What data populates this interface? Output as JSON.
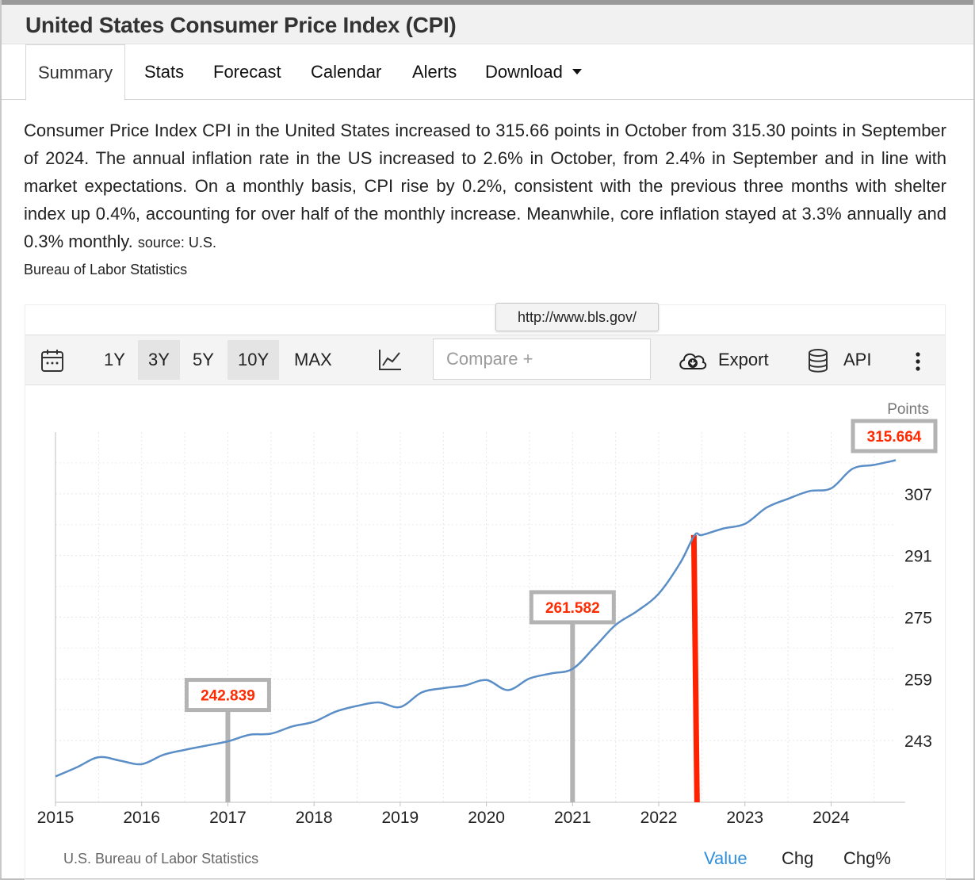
{
  "page": {
    "title": "United States Consumer Price Index (CPI)"
  },
  "tabs": [
    {
      "label": "Summary"
    },
    {
      "label": "Stats"
    },
    {
      "label": "Forecast"
    },
    {
      "label": "Calendar"
    },
    {
      "label": "Alerts"
    },
    {
      "label": "Download"
    }
  ],
  "summary": {
    "text": "Consumer Price Index CPI in the United States increased to 315.66 points in October from 315.30 points in September of 2024. The annual inflation rate in the US increased to 2.6% in October, from 2.4% in September and in line with market expectations. On a monthly basis, CPI rise by 0.2%, consistent with the previous three months with shelter index up 0.4%, accounting for over half of the monthly increase. Meanwhile, core inflation stayed at 3.3% annually and 0.3% monthly.",
    "source_label": "source: U.S.",
    "source_name": "Bureau of Labor Statistics"
  },
  "tooltip": {
    "text": "http://www.bls.gov/"
  },
  "toolbar": {
    "calendar_icon": "calendar-icon",
    "periods": [
      "1Y",
      "3Y",
      "5Y",
      "10Y",
      "MAX"
    ],
    "selected_periods": [
      "3Y",
      "10Y"
    ],
    "chart_type_icon": "line-chart-icon",
    "compare_placeholder": "Compare +",
    "export_icon": "cloud-download-icon",
    "export_label": "Export",
    "api_icon": "database-icon",
    "api_label": "API",
    "more_icon": "vertical-dots-icon"
  },
  "footer": {
    "source": "U.S. Bureau of Labor Statistics",
    "modes": [
      "Value",
      "Chg",
      "Chg%"
    ],
    "active_mode": "Value",
    "active_color": "#2f8fdd"
  },
  "chart_data": {
    "type": "line",
    "unit_label": "Points",
    "x_ticks": [
      "2015",
      "2016",
      "2017",
      "2018",
      "2019",
      "2020",
      "2021",
      "2022",
      "2023",
      "2024"
    ],
    "y_ticks": [
      243,
      259,
      275,
      291,
      307
    ],
    "xlim": [
      "2015-01",
      "2024-10"
    ],
    "ylim": [
      227,
      323
    ],
    "grid": true,
    "line_color": "#5b8ec6",
    "series": [
      {
        "x": [
          "2015-01",
          "2015-04",
          "2015-07",
          "2015-10",
          "2016-01",
          "2016-04",
          "2016-07",
          "2016-10",
          "2017-01",
          "2017-04",
          "2017-07",
          "2017-10",
          "2018-01",
          "2018-04",
          "2018-07",
          "2018-10",
          "2019-01",
          "2019-04",
          "2019-07",
          "2019-10",
          "2020-01",
          "2020-04",
          "2020-07",
          "2020-10",
          "2021-01",
          "2021-04",
          "2021-07",
          "2021-10",
          "2022-01",
          "2022-04",
          "2022-06",
          "2022-07",
          "2022-10",
          "2023-01",
          "2023-04",
          "2023-07",
          "2023-10",
          "2024-01",
          "2024-04",
          "2024-07",
          "2024-10"
        ],
        "values": [
          233.7,
          236.1,
          238.7,
          237.8,
          236.9,
          239.3,
          240.6,
          241.7,
          242.8,
          244.5,
          244.8,
          246.7,
          247.9,
          250.5,
          252.0,
          252.9,
          251.7,
          255.5,
          256.6,
          257.3,
          258.7,
          256.1,
          259.1,
          260.4,
          261.6,
          267.1,
          273.0,
          276.6,
          281.1,
          289.1,
          296.3,
          296.3,
          298.0,
          299.2,
          303.4,
          305.7,
          307.7,
          308.4,
          313.5,
          314.5,
          315.7
        ]
      }
    ],
    "annotations": [
      {
        "x": "2017-01",
        "label": "242.839",
        "value": 242.839
      },
      {
        "x": "2021-01",
        "label": "261.582",
        "value": 261.582
      },
      {
        "x": "2024-10",
        "label": "315.664",
        "value": 315.664
      }
    ],
    "marker": {
      "x": "2022-06",
      "color": "#ff2200"
    }
  }
}
